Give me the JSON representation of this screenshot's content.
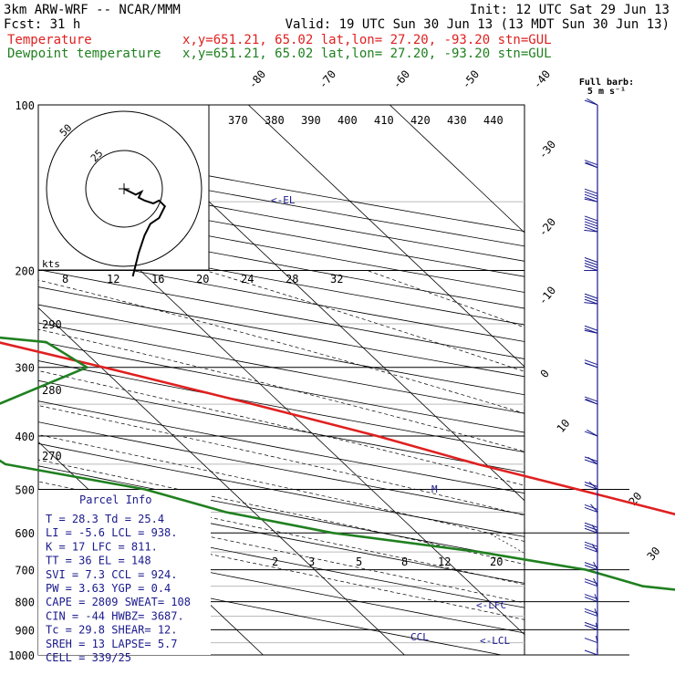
{
  "header": {
    "left_line1": "3km ARW-WRF -- NCAR/MMM",
    "right_line1": "Init: 12 UTC Sat 29 Jun 13",
    "left_line2": "Fcst:    31 h",
    "right_line2": "Valid: 19 UTC Sun 30 Jun 13 (13 MDT Sun 30 Jun 13)",
    "temp_label": "Temperature",
    "dew_label": "Dewpoint temperature",
    "temp_info": "x,y=651.21, 65.02   lat,lon= 27.20, -93.20   stn=GUL",
    "dew_info": "x,y=651.21, 65.02   lat,lon= 27.20, -93.20   stn=GUL"
  },
  "colors": {
    "temperature": "#e02020",
    "dewpoint": "#208020",
    "info_text": "#1a1a8c",
    "wind": "#1a1a8c"
  },
  "barb_legend": {
    "line1": "Full barb:",
    "line2": "5 m s⁻¹"
  },
  "hodograph": {
    "units_label": "kts",
    "ring_labels": [
      "25",
      "50"
    ],
    "trace": [
      [
        0,
        0
      ],
      [
        4,
        -2
      ],
      [
        6,
        -1
      ],
      [
        5,
        -3
      ],
      [
        7,
        -4
      ],
      [
        10,
        -5
      ],
      [
        12,
        -4
      ],
      [
        14,
        -6
      ],
      [
        12,
        -10
      ],
      [
        9,
        -12
      ],
      [
        7,
        -16
      ],
      [
        5,
        -22
      ],
      [
        3,
        -30
      ]
    ]
  },
  "labels": {
    "el": "<-EL",
    "lfc": "<-LFC",
    "lcl": "<-LCL",
    "ccl": "CCL",
    "m": "M"
  },
  "parcel_info": {
    "title": "Parcel Info",
    "rows": [
      "T  =   28.3  Td =  25.4",
      "LI =   -5.6  LCL =  938.",
      "K  =     17  LFC =  811.",
      "TT =     36  EL  =  148",
      "SVI =   7.3  CCL =  924.",
      "PW =   3.63  YGP =   0.4",
      "CAPE = 2809  SWEAT=  108",
      "CIN =   -44  HWBZ= 3687.",
      "Tc =   29.8  SHEAR=  12.",
      "SREH =   13  LAPSE=  5.7",
      "CELL = 339/25"
    ]
  },
  "chart_data": {
    "type": "line",
    "subtype": "skew-T log-p",
    "pressure_ticks": [
      "100",
      "200",
      "300",
      "400",
      "500",
      "600",
      "700",
      "800",
      "900",
      "1000"
    ],
    "isotherm_labels": [
      "-80",
      "-70",
      "-60",
      "-50",
      "-40",
      "-30",
      "-20",
      "-10",
      "0",
      "10",
      "20",
      "30",
      "40"
    ],
    "theta_labels_top": [
      "370",
      "380",
      "390",
      "400",
      "410",
      "420",
      "430",
      "440"
    ],
    "mixing_ratio_labels": [
      "8",
      "12",
      "16",
      "20",
      "24",
      "28",
      "32"
    ],
    "mixing_ratio_labels_low": [
      "2",
      "3",
      "5",
      "8",
      "12",
      "20"
    ],
    "theta_labels_left": [
      "290",
      "280",
      "270"
    ],
    "series": [
      {
        "name": "Temperature",
        "points": [
          [
            1000,
            28.3
          ],
          [
            975,
            26.0
          ],
          [
            950,
            24.4
          ],
          [
            925,
            24.6
          ],
          [
            900,
            24.0
          ],
          [
            850,
            20.8
          ],
          [
            800,
            17.2
          ],
          [
            750,
            13.6
          ],
          [
            700,
            10.2
          ],
          [
            650,
            6.8
          ],
          [
            600,
            3.4
          ],
          [
            550,
            -0.8
          ],
          [
            500,
            -5.4
          ],
          [
            450,
            -10.6
          ],
          [
            400,
            -15.6
          ],
          [
            350,
            -22.0
          ],
          [
            300,
            -29.8
          ],
          [
            250,
            -39.5
          ],
          [
            225,
            -45.0
          ],
          [
            200,
            -51.0
          ],
          [
            175,
            -58.0
          ],
          [
            160,
            -63.8
          ],
          [
            150,
            -66.5
          ],
          [
            140,
            -68.0
          ],
          [
            125,
            -68.5
          ],
          [
            110,
            -69.5
          ],
          [
            100,
            -70.5
          ]
        ]
      },
      {
        "name": "Dewpoint temperature",
        "points": [
          [
            1000,
            25.4
          ],
          [
            975,
            22.6
          ],
          [
            950,
            20.0
          ],
          [
            925,
            9.0
          ],
          [
            900,
            4.0
          ],
          [
            850,
            -1.2
          ],
          [
            800,
            1.0
          ],
          [
            750,
            -8.0
          ],
          [
            700,
            -10.8
          ],
          [
            650,
            -17.0
          ],
          [
            600,
            -26.0
          ],
          [
            550,
            -32.0
          ],
          [
            500,
            -36.0
          ],
          [
            450,
            -44.0
          ],
          [
            400,
            -45.0
          ],
          [
            350,
            -40.0
          ],
          [
            300,
            -31.0
          ],
          [
            270,
            -32.0
          ],
          [
            250,
            -44.0
          ],
          [
            225,
            -50.0
          ],
          [
            210,
            -54.0
          ],
          [
            200,
            -60.0
          ],
          [
            175,
            -68.0
          ],
          [
            150,
            -77.0
          ],
          [
            130,
            -82.0
          ],
          [
            110,
            -86.0
          ],
          [
            100,
            -88.0
          ]
        ]
      }
    ],
    "wind_barbs": [
      {
        "p": 100,
        "spd": 2,
        "dir": 220
      },
      {
        "p": 130,
        "spd": 4,
        "dir": 230
      },
      {
        "p": 150,
        "spd": 8,
        "dir": 250
      },
      {
        "p": 170,
        "spd": 10,
        "dir": 260
      },
      {
        "p": 200,
        "spd": 7,
        "dir": 270
      },
      {
        "p": 230,
        "spd": 5,
        "dir": 260
      },
      {
        "p": 260,
        "spd": 4,
        "dir": 250
      },
      {
        "p": 300,
        "spd": 3,
        "dir": 240
      },
      {
        "p": 350,
        "spd": 3,
        "dir": 230
      },
      {
        "p": 400,
        "spd": 2,
        "dir": 220
      },
      {
        "p": 450,
        "spd": 3,
        "dir": 210
      },
      {
        "p": 500,
        "spd": 4,
        "dir": 200
      },
      {
        "p": 550,
        "spd": 4,
        "dir": 190
      },
      {
        "p": 600,
        "spd": 5,
        "dir": 180
      },
      {
        "p": 650,
        "spd": 5,
        "dir": 180
      },
      {
        "p": 700,
        "spd": 4,
        "dir": 170
      },
      {
        "p": 750,
        "spd": 4,
        "dir": 170
      },
      {
        "p": 800,
        "spd": 3,
        "dir": 160
      },
      {
        "p": 850,
        "spd": 3,
        "dir": 160
      },
      {
        "p": 900,
        "spd": 3,
        "dir": 150
      },
      {
        "p": 950,
        "spd": 2,
        "dir": 150
      },
      {
        "p": 1000,
        "spd": 2,
        "dir": 140
      }
    ]
  }
}
